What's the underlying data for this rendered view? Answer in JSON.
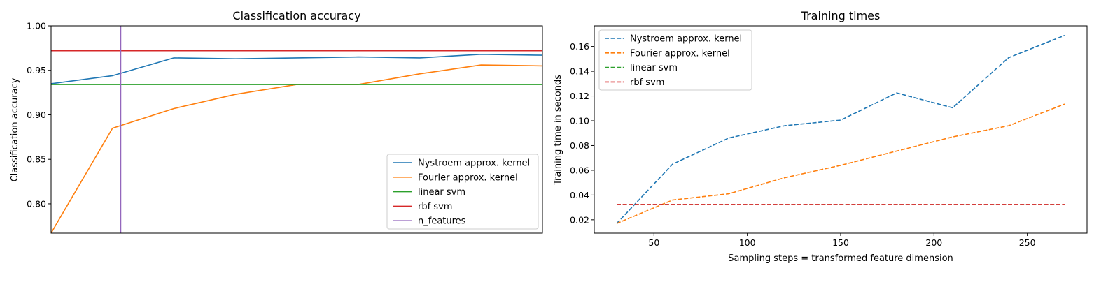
{
  "chart_data": [
    {
      "type": "line",
      "title": "Classification accuracy",
      "xlabel": "",
      "ylabel": "Classification accuracy",
      "x": [
        30,
        60,
        90,
        120,
        150,
        180,
        210,
        240,
        270
      ],
      "xlim": [
        30,
        270
      ],
      "ylim": [
        0.767,
        1.0
      ],
      "yticks": [
        0.8,
        0.85,
        0.9,
        0.95,
        1.0
      ],
      "ytick_labels": [
        "0.80",
        "0.85",
        "0.90",
        "0.95",
        "1.00"
      ],
      "grid": false,
      "legend_position": "lower-right",
      "series": [
        {
          "name": "Nystroem approx. kernel",
          "color": "#1f77b4",
          "style": "solid",
          "values": [
            0.935,
            0.944,
            0.964,
            0.963,
            0.964,
            0.965,
            0.964,
            0.968,
            0.967
          ]
        },
        {
          "name": "Fourier approx. kernel",
          "color": "#ff7f0e",
          "style": "solid",
          "values": [
            0.767,
            0.885,
            0.907,
            0.923,
            0.934,
            0.934,
            0.946,
            0.956,
            0.955
          ]
        },
        {
          "name": "linear svm",
          "color": "#2ca02c",
          "style": "solid",
          "kind": "hline",
          "value": 0.934
        },
        {
          "name": "rbf svm",
          "color": "#d62728",
          "style": "solid",
          "kind": "hline",
          "value": 0.972
        },
        {
          "name": "n_features",
          "color": "#9467bd",
          "style": "solid",
          "kind": "vline",
          "value": 64
        }
      ]
    },
    {
      "type": "line",
      "title": "Training times",
      "xlabel": "Sampling steps = transformed feature dimension",
      "ylabel": "Training time in seconds",
      "x": [
        30,
        60,
        90,
        120,
        150,
        180,
        210,
        240,
        270
      ],
      "xlim": [
        18,
        282
      ],
      "ylim": [
        0.0092,
        0.1767
      ],
      "xticks": [
        50,
        100,
        150,
        200,
        250
      ],
      "xtick_labels": [
        "50",
        "100",
        "150",
        "200",
        "250"
      ],
      "yticks": [
        0.02,
        0.04,
        0.06,
        0.08,
        0.1,
        0.12,
        0.14,
        0.16
      ],
      "ytick_labels": [
        "0.02",
        "0.04",
        "0.06",
        "0.08",
        "0.10",
        "0.12",
        "0.14",
        "0.16"
      ],
      "grid": false,
      "legend_position": "upper-left",
      "series": [
        {
          "name": "Nystroem approx. kernel",
          "color": "#1f77b4",
          "style": "dashed",
          "values": [
            0.017,
            0.065,
            0.086,
            0.096,
            0.1005,
            0.1225,
            0.1105,
            0.151,
            0.169
          ]
        },
        {
          "name": "Fourier approx. kernel",
          "color": "#ff7f0e",
          "style": "dashed",
          "values": [
            0.017,
            0.036,
            0.041,
            0.054,
            0.064,
            0.0755,
            0.087,
            0.096,
            0.1135
          ]
        },
        {
          "name": "linear svm",
          "color": "#2ca02c",
          "style": "dashed",
          "values": [
            0.0322,
            0.0322,
            0.0322,
            0.0322,
            0.0322,
            0.0322,
            0.0322,
            0.0322,
            0.0322
          ]
        },
        {
          "name": "rbf svm",
          "color": "#d62728",
          "style": "dashed",
          "values": [
            0.0324,
            0.0324,
            0.0324,
            0.0324,
            0.0324,
            0.0324,
            0.0324,
            0.0324,
            0.0324
          ]
        }
      ]
    }
  ]
}
